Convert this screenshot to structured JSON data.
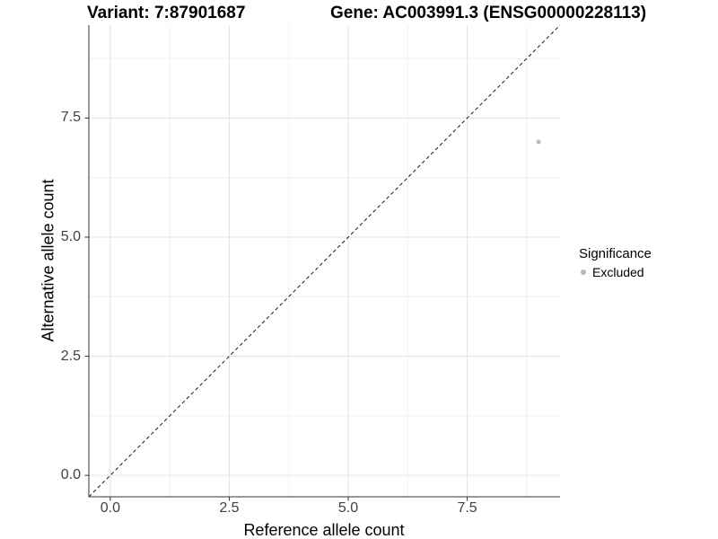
{
  "header": {
    "variant_title": "Variant: 7:87901687",
    "gene_title": "Gene: AC003991.3 (ENSG00000228113)"
  },
  "chart_data": {
    "type": "scatter",
    "xlabel": "Reference allele count",
    "ylabel": "Alternative allele count",
    "xlim": [
      -0.45,
      9.45
    ],
    "ylim": [
      -0.45,
      9.45
    ],
    "x_major_ticks": [
      {
        "value": 0,
        "label": "0.0"
      },
      {
        "value": 2.5,
        "label": "2.5"
      },
      {
        "value": 5,
        "label": "5.0"
      },
      {
        "value": 7.5,
        "label": "7.5"
      }
    ],
    "y_major_ticks": [
      {
        "value": 0,
        "label": "0.0"
      },
      {
        "value": 2.5,
        "label": "2.5"
      },
      {
        "value": 5,
        "label": "5.0"
      },
      {
        "value": 7.5,
        "label": "7.5"
      }
    ],
    "x_minor_ticks": [
      1.25,
      3.75,
      6.25,
      8.75
    ],
    "y_minor_ticks": [
      1.25,
      3.75,
      6.25,
      8.75
    ],
    "grid": true,
    "reference_line": {
      "type": "abline",
      "slope": 1,
      "intercept": 0,
      "style": "dashed",
      "color": "#1a1a1a"
    },
    "series": [
      {
        "name": "Excluded",
        "color": "#bdbdbd",
        "point_radius": 2.6,
        "points": [
          {
            "x": 9,
            "y": 7
          }
        ]
      }
    ],
    "legend": {
      "position": "right",
      "title": "Significance",
      "items": [
        {
          "label": "Excluded",
          "color": "#b5b5b5"
        }
      ]
    }
  },
  "colors": {
    "grid_major": "#e3e3e3",
    "grid_minor": "#f0f0f0",
    "axis_line": "#333333",
    "tick_mark": "#333333",
    "tick_label": "#404040",
    "background": "#ffffff"
  }
}
